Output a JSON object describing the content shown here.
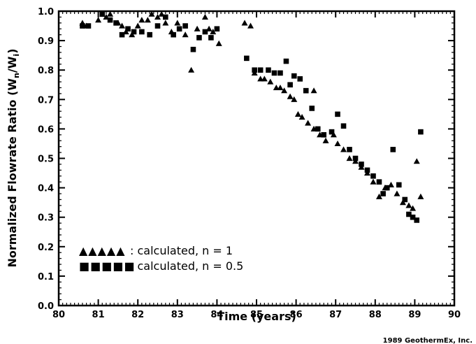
{
  "chart_data": {
    "type": "scatter",
    "xlabel": "Time  (years)",
    "ylabel_main": "Normalized  Flowrate  Ratio  (W",
    "ylabel_sub1": "n",
    "ylabel_mid": "/W",
    "ylabel_sub2": "i",
    "ylabel_end": ")",
    "xlim": [
      80,
      90
    ],
    "ylim": [
      0.0,
      1.0
    ],
    "xticks": [
      "80",
      "81",
      "82",
      "83",
      "84",
      "85",
      "86",
      "87",
      "88",
      "89",
      "90"
    ],
    "yticks": [
      "0.0",
      "0.1",
      "0.2",
      "0.3",
      "0.4",
      "0.5",
      "0.6",
      "0.7",
      "0.8",
      "0.9",
      "1.0"
    ],
    "grid": false,
    "legend_position": "bottom-left",
    "footer": "1989  GeothermEx, Inc.",
    "series": [
      {
        "name": ": calculated,  n  =  1",
        "marker": "triangle",
        "legend_glyph": "▲▲▲▲▲",
        "points": [
          [
            80.6,
            0.96
          ],
          [
            80.7,
            0.95
          ],
          [
            81.0,
            0.97
          ],
          [
            81.2,
            0.98
          ],
          [
            81.3,
            0.99
          ],
          [
            81.5,
            0.96
          ],
          [
            81.6,
            0.95
          ],
          [
            81.7,
            0.93
          ],
          [
            81.85,
            0.92
          ],
          [
            82.0,
            0.95
          ],
          [
            82.1,
            0.97
          ],
          [
            82.25,
            0.97
          ],
          [
            82.35,
            0.99
          ],
          [
            82.5,
            0.98
          ],
          [
            82.6,
            0.99
          ],
          [
            82.7,
            0.96
          ],
          [
            82.85,
            0.93
          ],
          [
            83.0,
            0.96
          ],
          [
            83.2,
            0.92
          ],
          [
            83.35,
            0.8
          ],
          [
            83.5,
            0.94
          ],
          [
            83.7,
            0.98
          ],
          [
            83.8,
            0.94
          ],
          [
            83.9,
            0.93
          ],
          [
            84.05,
            0.89
          ],
          [
            84.7,
            0.96
          ],
          [
            84.85,
            0.95
          ],
          [
            84.95,
            0.79
          ],
          [
            85.1,
            0.77
          ],
          [
            85.2,
            0.77
          ],
          [
            85.35,
            0.76
          ],
          [
            85.5,
            0.74
          ],
          [
            85.6,
            0.74
          ],
          [
            85.7,
            0.73
          ],
          [
            85.85,
            0.71
          ],
          [
            85.95,
            0.7
          ],
          [
            86.05,
            0.65
          ],
          [
            86.15,
            0.64
          ],
          [
            86.3,
            0.62
          ],
          [
            86.45,
            0.6
          ],
          [
            86.6,
            0.58
          ],
          [
            86.75,
            0.56
          ],
          [
            86.95,
            0.58
          ],
          [
            87.05,
            0.55
          ],
          [
            87.2,
            0.53
          ],
          [
            87.35,
            0.5
          ],
          [
            87.5,
            0.49
          ],
          [
            87.65,
            0.47
          ],
          [
            87.8,
            0.45
          ],
          [
            87.95,
            0.42
          ],
          [
            88.1,
            0.37
          ],
          [
            88.25,
            0.4
          ],
          [
            88.4,
            0.41
          ],
          [
            88.55,
            0.38
          ],
          [
            88.7,
            0.35
          ],
          [
            88.85,
            0.34
          ],
          [
            88.95,
            0.33
          ],
          [
            89.05,
            0.49
          ],
          [
            89.15,
            0.37
          ],
          [
            86.45,
            0.73
          ]
        ]
      },
      {
        "name": ": calculated,  n  =  0.5",
        "marker": "square",
        "legend_glyph": "■■■■■",
        "points": [
          [
            80.6,
            0.95
          ],
          [
            80.75,
            0.95
          ],
          [
            81.1,
            0.99
          ],
          [
            81.3,
            0.97
          ],
          [
            81.45,
            0.96
          ],
          [
            81.6,
            0.92
          ],
          [
            81.75,
            0.94
          ],
          [
            81.9,
            0.93
          ],
          [
            82.1,
            0.93
          ],
          [
            82.3,
            0.92
          ],
          [
            82.5,
            0.95
          ],
          [
            82.7,
            0.98
          ],
          [
            82.9,
            0.92
          ],
          [
            83.05,
            0.94
          ],
          [
            83.2,
            0.95
          ],
          [
            83.4,
            0.87
          ],
          [
            83.55,
            0.91
          ],
          [
            83.7,
            0.93
          ],
          [
            83.85,
            0.91
          ],
          [
            84.0,
            0.94
          ],
          [
            84.75,
            0.84
          ],
          [
            84.95,
            0.8
          ],
          [
            85.1,
            0.8
          ],
          [
            85.3,
            0.8
          ],
          [
            85.45,
            0.79
          ],
          [
            85.6,
            0.79
          ],
          [
            85.75,
            0.83
          ],
          [
            85.85,
            0.75
          ],
          [
            85.95,
            0.78
          ],
          [
            86.1,
            0.77
          ],
          [
            86.25,
            0.73
          ],
          [
            86.4,
            0.67
          ],
          [
            86.55,
            0.6
          ],
          [
            86.7,
            0.58
          ],
          [
            86.9,
            0.59
          ],
          [
            87.05,
            0.65
          ],
          [
            87.2,
            0.61
          ],
          [
            87.35,
            0.53
          ],
          [
            87.5,
            0.5
          ],
          [
            87.65,
            0.48
          ],
          [
            87.8,
            0.46
          ],
          [
            87.95,
            0.44
          ],
          [
            88.1,
            0.42
          ],
          [
            88.3,
            0.4
          ],
          [
            88.45,
            0.53
          ],
          [
            88.6,
            0.41
          ],
          [
            88.75,
            0.36
          ],
          [
            88.85,
            0.31
          ],
          [
            88.95,
            0.3
          ],
          [
            89.05,
            0.29
          ],
          [
            89.15,
            0.59
          ],
          [
            88.2,
            0.38
          ]
        ]
      }
    ]
  }
}
